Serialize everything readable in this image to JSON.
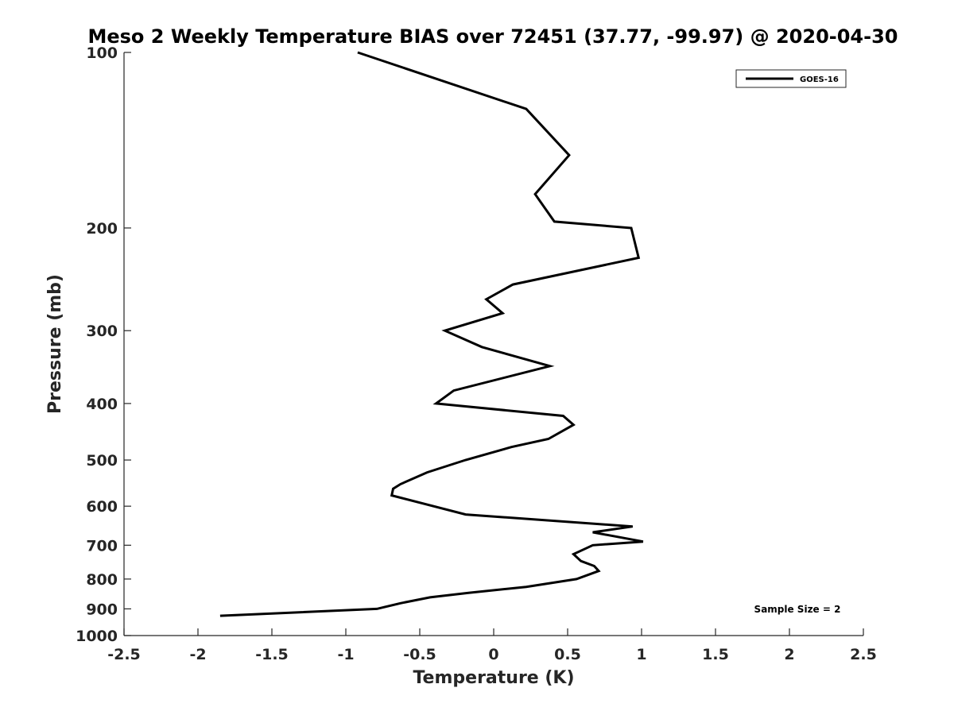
{
  "chart_data": {
    "type": "line",
    "title": "Meso 2 Weekly Temperature BIAS over 72451 (37.77, -99.97) @ 2020-04-30",
    "xlabel": "Temperature (K)",
    "ylabel": "Pressure (mb)",
    "xlim": [
      -2.5,
      2.5
    ],
    "ylim": [
      100,
      1000
    ],
    "y_scale": "log",
    "y_direction": "reversed",
    "x_ticks": [
      "-2.5",
      "-2",
      "-1.5",
      "-1",
      "-0.5",
      "0",
      "0.5",
      "1",
      "1.5",
      "2",
      "2.5"
    ],
    "y_ticks": [
      "100",
      "200",
      "300",
      "400",
      "500",
      "600",
      "700",
      "800",
      "900",
      "1000"
    ],
    "grid": false,
    "legend_position": "top-right",
    "annotation": "Sample Size = 2",
    "series": [
      {
        "name": "GOES-16",
        "color": "#000000",
        "points": [
          {
            "x": -0.92,
            "p": 100
          },
          {
            "x": 0.22,
            "p": 125
          },
          {
            "x": 0.51,
            "p": 150
          },
          {
            "x": 0.28,
            "p": 175
          },
          {
            "x": 0.41,
            "p": 195
          },
          {
            "x": 0.93,
            "p": 200
          },
          {
            "x": 0.98,
            "p": 225
          },
          {
            "x": 0.13,
            "p": 250
          },
          {
            "x": -0.05,
            "p": 265
          },
          {
            "x": 0.06,
            "p": 280
          },
          {
            "x": -0.33,
            "p": 300
          },
          {
            "x": -0.08,
            "p": 320
          },
          {
            "x": 0.38,
            "p": 345
          },
          {
            "x": -0.27,
            "p": 380
          },
          {
            "x": -0.39,
            "p": 400
          },
          {
            "x": 0.47,
            "p": 420
          },
          {
            "x": 0.54,
            "p": 435
          },
          {
            "x": 0.37,
            "p": 460
          },
          {
            "x": 0.12,
            "p": 475
          },
          {
            "x": -0.19,
            "p": 500
          },
          {
            "x": -0.45,
            "p": 525
          },
          {
            "x": -0.63,
            "p": 550
          },
          {
            "x": -0.68,
            "p": 560
          },
          {
            "x": -0.69,
            "p": 575
          },
          {
            "x": -0.19,
            "p": 620
          },
          {
            "x": 0.94,
            "p": 650
          },
          {
            "x": 0.67,
            "p": 665
          },
          {
            "x": 1.01,
            "p": 690
          },
          {
            "x": 0.67,
            "p": 700
          },
          {
            "x": 0.54,
            "p": 725
          },
          {
            "x": 0.59,
            "p": 745
          },
          {
            "x": 0.68,
            "p": 760
          },
          {
            "x": 0.71,
            "p": 775
          },
          {
            "x": 0.56,
            "p": 800
          },
          {
            "x": 0.22,
            "p": 825
          },
          {
            "x": -0.17,
            "p": 845
          },
          {
            "x": -0.43,
            "p": 860
          },
          {
            "x": -0.63,
            "p": 880
          },
          {
            "x": -0.79,
            "p": 900
          },
          {
            "x": -1.85,
            "p": 925
          }
        ]
      }
    ]
  }
}
